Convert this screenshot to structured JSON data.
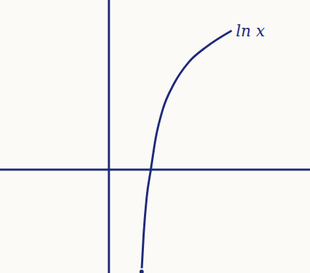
{
  "chart_data": {
    "type": "line",
    "x": [
      0.78,
      0.83,
      0.9,
      1.0,
      1.12,
      1.29,
      1.55,
      1.9,
      2.33,
      2.93
    ],
    "series": [
      {
        "name": "ln x",
        "color": "#1f2a7a",
        "values": [
          -2.47,
          -1.55,
          -0.69,
          0,
          0.78,
          1.47,
          2.07,
          2.59,
          2.97,
          3.36
        ]
      }
    ],
    "xlim": [
      -2.6,
      4.8
    ],
    "ylim": [
      -2.5,
      4.1
    ],
    "tick_labels": false,
    "grid": false
  }
}
